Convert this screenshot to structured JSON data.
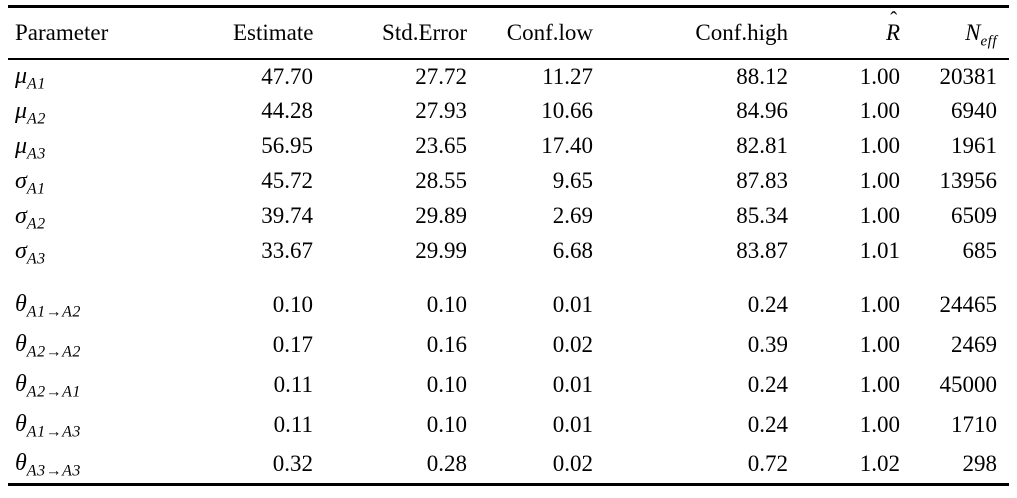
{
  "colors": {
    "background": "#ffffff",
    "text": "#000000",
    "rule": "#000000"
  },
  "table": {
    "columns": [
      {
        "id": "parameter",
        "label": "Parameter",
        "align": "left"
      },
      {
        "id": "estimate",
        "label": "Estimate",
        "align": "right"
      },
      {
        "id": "std_error",
        "label": "Std.Error",
        "align": "right"
      },
      {
        "id": "conf_low",
        "label": "Conf.low",
        "align": "right"
      },
      {
        "id": "conf_high",
        "label": "Conf.high",
        "align": "right"
      },
      {
        "id": "rhat",
        "label": "R",
        "accent": "ˆ",
        "align": "right"
      },
      {
        "id": "neff",
        "label": "N",
        "sub": "eff",
        "align": "right"
      }
    ],
    "groups": [
      {
        "name": "location-and-scale-parameters",
        "rows": [
          {
            "param": {
              "base": "μ",
              "sub": "A1"
            },
            "estimate": "47.70",
            "std_error": "27.72",
            "conf_low": "11.27",
            "conf_high": "88.12",
            "rhat": "1.00",
            "neff": "20381"
          },
          {
            "param": {
              "base": "μ",
              "sub": "A2"
            },
            "estimate": "44.28",
            "std_error": "27.93",
            "conf_low": "10.66",
            "conf_high": "84.96",
            "rhat": "1.00",
            "neff": "6940"
          },
          {
            "param": {
              "base": "μ",
              "sub": "A3"
            },
            "estimate": "56.95",
            "std_error": "23.65",
            "conf_low": "17.40",
            "conf_high": "82.81",
            "rhat": "1.00",
            "neff": "1961"
          },
          {
            "param": {
              "base": "σ",
              "sub": "A1"
            },
            "estimate": "45.72",
            "std_error": "28.55",
            "conf_low": "9.65",
            "conf_high": "87.83",
            "rhat": "1.00",
            "neff": "13956"
          },
          {
            "param": {
              "base": "σ",
              "sub": "A2"
            },
            "estimate": "39.74",
            "std_error": "29.89",
            "conf_low": "2.69",
            "conf_high": "85.34",
            "rhat": "1.00",
            "neff": "6509"
          },
          {
            "param": {
              "base": "σ",
              "sub": "A3"
            },
            "estimate": "33.67",
            "std_error": "29.99",
            "conf_low": "6.68",
            "conf_high": "83.87",
            "rhat": "1.01",
            "neff": "685"
          }
        ]
      },
      {
        "name": "transition-parameters",
        "rows": [
          {
            "param": {
              "base": "θ",
              "sub": "A1→A2"
            },
            "estimate": "0.10",
            "std_error": "0.10",
            "conf_low": "0.01",
            "conf_high": "0.24",
            "rhat": "1.00",
            "neff": "24465"
          },
          {
            "param": {
              "base": "θ",
              "sub": "A2→A2"
            },
            "estimate": "0.17",
            "std_error": "0.16",
            "conf_low": "0.02",
            "conf_high": "0.39",
            "rhat": "1.00",
            "neff": "2469"
          },
          {
            "param": {
              "base": "θ",
              "sub": "A2→A1"
            },
            "estimate": "0.11",
            "std_error": "0.10",
            "conf_low": "0.01",
            "conf_high": "0.24",
            "rhat": "1.00",
            "neff": "45000"
          },
          {
            "param": {
              "base": "θ",
              "sub": "A1→A3"
            },
            "estimate": "0.11",
            "std_error": "0.10",
            "conf_low": "0.01",
            "conf_high": "0.24",
            "rhat": "1.00",
            "neff": "1710"
          },
          {
            "param": {
              "base": "θ",
              "sub": "A3→A3"
            },
            "estimate": "0.32",
            "std_error": "0.28",
            "conf_low": "0.02",
            "conf_high": "0.72",
            "rhat": "1.02",
            "neff": "298"
          }
        ]
      }
    ]
  },
  "chart_data": {
    "type": "table",
    "title": "",
    "columns": [
      "Parameter",
      "Estimate",
      "Std.Error",
      "Conf.low",
      "Conf.high",
      "R̂",
      "N_eff"
    ],
    "rows": [
      [
        "μ_A1",
        47.7,
        27.72,
        11.27,
        88.12,
        1.0,
        20381
      ],
      [
        "μ_A2",
        44.28,
        27.93,
        10.66,
        84.96,
        1.0,
        6940
      ],
      [
        "μ_A3",
        56.95,
        23.65,
        17.4,
        82.81,
        1.0,
        1961
      ],
      [
        "σ_A1",
        45.72,
        28.55,
        9.65,
        87.83,
        1.0,
        13956
      ],
      [
        "σ_A2",
        39.74,
        29.89,
        2.69,
        85.34,
        1.0,
        6509
      ],
      [
        "σ_A3",
        33.67,
        29.99,
        6.68,
        83.87,
        1.01,
        685
      ],
      [
        "θ_A1→A2",
        0.1,
        0.1,
        0.01,
        0.24,
        1.0,
        24465
      ],
      [
        "θ_A2→A2",
        0.17,
        0.16,
        0.02,
        0.39,
        1.0,
        2469
      ],
      [
        "θ_A2→A1",
        0.11,
        0.1,
        0.01,
        0.24,
        1.0,
        45000
      ],
      [
        "θ_A1→A3",
        0.11,
        0.1,
        0.01,
        0.24,
        1.0,
        1710
      ],
      [
        "θ_A3→A3",
        0.32,
        0.28,
        0.02,
        0.72,
        1.02,
        298
      ]
    ]
  }
}
